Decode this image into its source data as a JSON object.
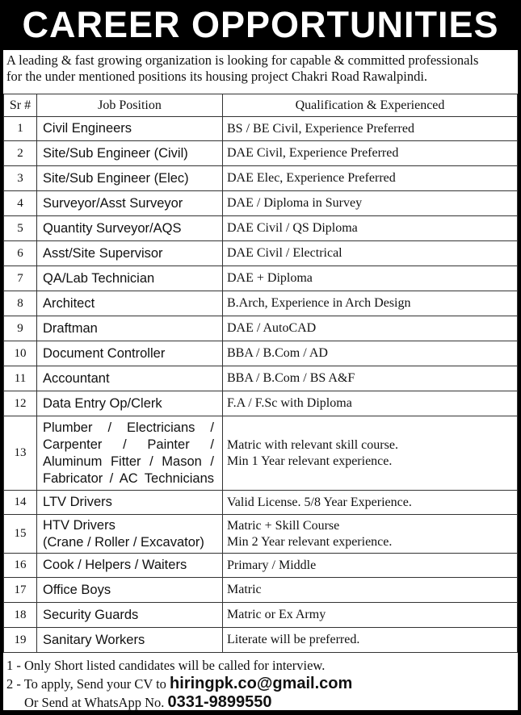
{
  "title": "CAREER OPPORTUNITIES",
  "intro": [
    "A leading & fast growing organization is looking for capable & committed professionals",
    "for the under mentioned positions its housing project Chakri Road Rawalpindi."
  ],
  "table": {
    "headers": {
      "sr": "Sr #",
      "job": "Job Position",
      "qual": "Qualification & Experienced"
    },
    "rows": [
      {
        "sr": "1",
        "job": [
          "Civil Engineers"
        ],
        "qual": [
          "BS / BE Civil, Experience Preferred"
        ]
      },
      {
        "sr": "2",
        "job": [
          "Site/Sub Engineer (Civil)"
        ],
        "qual": [
          "DAE Civil, Experience Preferred"
        ]
      },
      {
        "sr": "3",
        "job": [
          "Site/Sub Engineer  (Elec)"
        ],
        "qual": [
          "DAE Elec, Experience Preferred"
        ]
      },
      {
        "sr": "4",
        "job": [
          "Surveyor/Asst Surveyor"
        ],
        "qual": [
          "DAE / Diploma in Survey"
        ]
      },
      {
        "sr": "5",
        "job": [
          "Quantity Surveyor/AQS"
        ],
        "qual": [
          "DAE Civil / QS Diploma"
        ]
      },
      {
        "sr": "6",
        "job": [
          "Asst/Site Supervisor"
        ],
        "qual": [
          "DAE Civil / Electrical"
        ]
      },
      {
        "sr": "7",
        "job": [
          "QA/Lab Technician"
        ],
        "qual": [
          "DAE + Diploma"
        ]
      },
      {
        "sr": "8",
        "job": [
          "Architect"
        ],
        "qual": [
          "B.Arch, Experience in Arch Design"
        ]
      },
      {
        "sr": "9",
        "job": [
          "Draftman"
        ],
        "qual": [
          "DAE / AutoCAD"
        ]
      },
      {
        "sr": "10",
        "job": [
          "Document Controller"
        ],
        "qual": [
          "BBA / B.Com / AD"
        ]
      },
      {
        "sr": "11",
        "job": [
          "Accountant"
        ],
        "qual": [
          "BBA / B.Com / BS A&F"
        ]
      },
      {
        "sr": "12",
        "job": [
          "Data Entry Op/Clerk"
        ],
        "qual": [
          "F.A / F.Sc with Diploma"
        ]
      },
      {
        "sr": "13",
        "job": [
          "Plumber / Electricians /",
          "Carpenter / Painter /",
          "Aluminum Fitter / Mason /",
          "Fabricator / AC Technicians"
        ],
        "qual": [
          "Matric with relevant skill course.",
          "Min 1 Year relevant experience."
        ]
      },
      {
        "sr": "14",
        "job": [
          "LTV Drivers"
        ],
        "qual": [
          "Valid License. 5/8 Year Experience."
        ]
      },
      {
        "sr": "15",
        "job": [
          "HTV Drivers",
          "(Crane / Roller / Excavator)"
        ],
        "qual": [
          "Matric + Skill Course",
          "Min 2 Year relevant experience."
        ]
      },
      {
        "sr": "16",
        "job": [
          "Cook / Helpers / Waiters"
        ],
        "qual": [
          "Primary / Middle"
        ]
      },
      {
        "sr": "17",
        "job": [
          "Office Boys"
        ],
        "qual": [
          "Matric"
        ]
      },
      {
        "sr": "18",
        "job": [
          "Security Guards"
        ],
        "qual": [
          "Matric or Ex Army"
        ]
      },
      {
        "sr": "19",
        "job": [
          "Sanitary Workers"
        ],
        "qual": [
          "Literate will be preferred."
        ]
      }
    ]
  },
  "footer": {
    "note1": "1 - Only Short listed candidates will be called for interview.",
    "note2_prefix": "2 - To apply, Send your CV to ",
    "email": "hiringpk.co@gmail.com",
    "note3_prefix": "Or Send at WhatsApp No. ",
    "whatsapp": "0331-9899550"
  }
}
